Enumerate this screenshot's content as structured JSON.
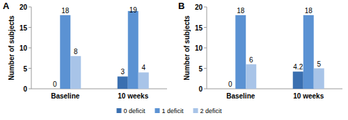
{
  "chart_data": [
    {
      "type": "bar",
      "title": "A",
      "y_label": "Number of subjects",
      "categories": [
        "Baseline",
        "10 weeks"
      ],
      "series": [
        {
          "name": "0 deficit",
          "color": "#3a6fb0",
          "values": [
            0,
            3
          ]
        },
        {
          "name": "1 deficit",
          "color": "#5b92d3",
          "values": [
            18,
            19
          ]
        },
        {
          "name": "2 deficit",
          "color": "#a8c4e8",
          "values": [
            8,
            4
          ]
        }
      ],
      "ylim": [
        0,
        20
      ],
      "yticks": [
        0,
        5,
        10,
        15,
        20
      ],
      "grid": false,
      "data_labels": true,
      "legend": "bottom"
    },
    {
      "type": "bar",
      "title": "B",
      "y_label": "Number of subjects",
      "categories": [
        "Baseline",
        "10 weeks"
      ],
      "series": [
        {
          "color": "#3a6fb0",
          "values": [
            0,
            4.2
          ]
        },
        {
          "color": "#5b92d3",
          "values": [
            18,
            18
          ]
        },
        {
          "color": "#a8c4e8",
          "values": [
            6,
            5
          ]
        }
      ],
      "ylim": [
        0,
        20
      ],
      "yticks": [
        0,
        5,
        10,
        15,
        20
      ],
      "grid": false,
      "data_labels": true
    }
  ]
}
